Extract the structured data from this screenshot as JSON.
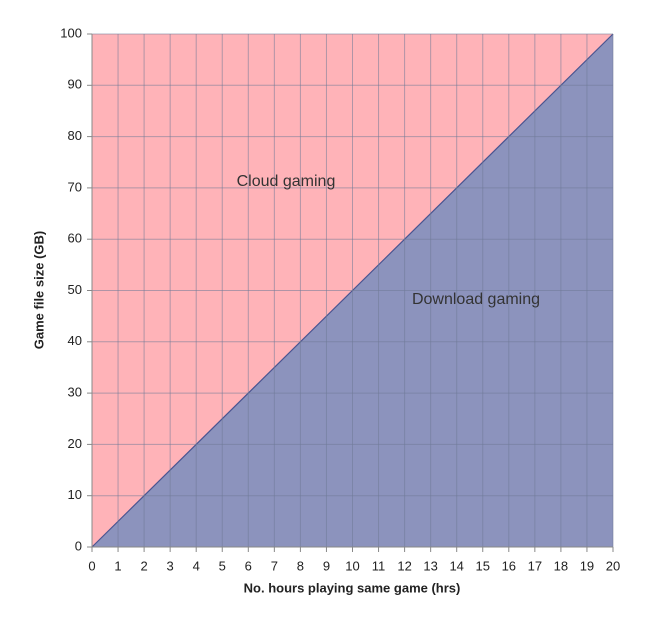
{
  "chart_data": {
    "type": "area",
    "x_label": "No. hours playing same game (hrs)",
    "y_label": "Game file size (GB)",
    "x": [
      0,
      20
    ],
    "series": [
      {
        "color": "#8c93bd",
        "values": [
          0,
          100
        ]
      }
    ],
    "plot_color": "#ffb3b8",
    "line_color": "#4a5490",
    "xlim": [
      0,
      20
    ],
    "xticks": [
      0,
      1,
      2,
      3,
      4,
      5,
      6,
      7,
      8,
      9,
      10,
      11,
      12,
      13,
      14,
      15,
      16,
      17,
      18,
      19,
      20
    ],
    "ylim": [
      0,
      100
    ],
    "yticks": [
      0,
      10,
      20,
      30,
      40,
      50,
      60,
      70,
      80,
      90,
      100
    ],
    "grid": true,
    "annotations": [
      "Cloud gaming",
      "Download gaming"
    ]
  }
}
